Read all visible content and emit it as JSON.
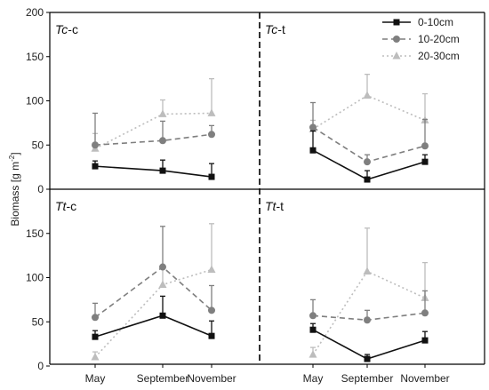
{
  "chart_data": {
    "type": "line",
    "ylabel": "Biomass [g m-2]",
    "ylabel_main": "Biomass [g m",
    "ylabel_sup": "-2",
    "ylabel_end": "]",
    "categories": [
      "May",
      "September",
      "November"
    ],
    "ylim": [
      0,
      200
    ],
    "yticks": [
      0,
      50,
      100,
      150,
      200
    ],
    "grid": false,
    "legend_position": "top-right",
    "series_styles": [
      {
        "name": "0-10cm",
        "color": "#111111",
        "marker": "square",
        "dash": "solid"
      },
      {
        "name": "10-20cm",
        "color": "#7f7f7f",
        "marker": "circle",
        "dash": "dashed"
      },
      {
        "name": "20-30cm",
        "color": "#bdbdbd",
        "marker": "triangle",
        "dash": "dotted"
      }
    ],
    "panels": [
      {
        "title_italic": "Tc",
        "title_rest": "-c",
        "series": [
          {
            "name": "0-10cm",
            "values": [
              26,
              21,
              14
            ],
            "errors": [
              6,
              12,
              15
            ]
          },
          {
            "name": "10-20cm",
            "values": [
              50,
              55,
              62
            ],
            "errors": [
              36,
              22,
              10
            ]
          },
          {
            "name": "20-30cm",
            "values": [
              46,
              85,
              86
            ],
            "errors": [
              17,
              16,
              39
            ]
          }
        ]
      },
      {
        "title_italic": "Tc",
        "title_rest": "-t",
        "series": [
          {
            "name": "0-10cm",
            "values": [
              44,
              11,
              31
            ],
            "errors": [
              22,
              10,
              8
            ]
          },
          {
            "name": "10-20cm",
            "values": [
              70,
              31,
              49
            ],
            "errors": [
              28,
              8,
              30
            ]
          },
          {
            "name": "20-30cm",
            "values": [
              68,
              106,
              78
            ],
            "errors": [
              10,
              24,
              30
            ]
          }
        ]
      },
      {
        "title_italic": "Tt",
        "title_rest": "-c",
        "series": [
          {
            "name": "0-10cm",
            "values": [
              33,
              57,
              34
            ],
            "errors": [
              7,
              22,
              17
            ]
          },
          {
            "name": "10-20cm",
            "values": [
              55,
              112,
              63
            ],
            "errors": [
              16,
              46,
              28
            ]
          },
          {
            "name": "20-30cm",
            "values": [
              10,
              92,
              109
            ],
            "errors": [
              6,
              18,
              52
            ]
          }
        ]
      },
      {
        "title_italic": "Tt",
        "title_rest": "-t",
        "series": [
          {
            "name": "0-10cm",
            "values": [
              41,
              8,
              29
            ],
            "errors": [
              7,
              5,
              10
            ]
          },
          {
            "name": "10-20cm",
            "values": [
              57,
              52,
              60
            ],
            "errors": [
              18,
              11,
              25
            ]
          },
          {
            "name": "20-30cm",
            "values": [
              13,
              107,
              77
            ],
            "errors": [
              8,
              49,
              40
            ]
          }
        ]
      }
    ]
  }
}
